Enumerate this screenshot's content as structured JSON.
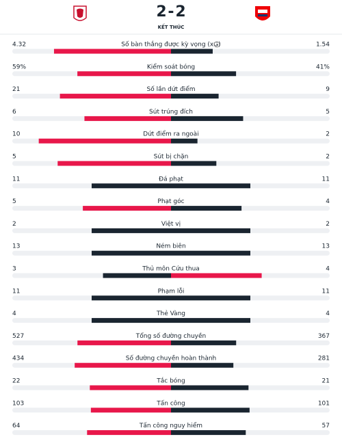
{
  "header": {
    "home_score": 2,
    "separator": "-",
    "away_score": 2,
    "status": "KẾT THÚC"
  },
  "stats": [
    {
      "label": "Số bàn thắng được kỳ vọng (xG)",
      "home": 4.32,
      "away": 1.54
    },
    {
      "label": "Kiểm soát bóng",
      "home": {
        "value": 59,
        "label": "59%"
      },
      "away": {
        "value": 41,
        "label": "41%"
      }
    },
    {
      "label": "Số lần dứt điểm",
      "home": 21,
      "away": 9
    },
    {
      "label": "Sút trúng đích",
      "home": 6,
      "away": 5
    },
    {
      "label": "Dứt điểm ra ngoài",
      "home": 10,
      "away": 2
    },
    {
      "label": "Sút bị chặn",
      "home": 5,
      "away": 2
    },
    {
      "label": "Đá phạt",
      "home": 11,
      "away": 11
    },
    {
      "label": "Phạt góc",
      "home": 5,
      "away": 4
    },
    {
      "label": "Việt vị",
      "home": 2,
      "away": 2
    },
    {
      "label": "Ném biên",
      "home": 13,
      "away": 13
    },
    {
      "label": "Thủ môn Cứu thua",
      "home": 3,
      "away": 4
    },
    {
      "label": "Phạm lỗi",
      "home": 11,
      "away": 11
    },
    {
      "label": "Thẻ Vàng",
      "home": 4,
      "away": 4
    },
    {
      "label": "Tổng số đường chuyền",
      "home": 527,
      "away": 367
    },
    {
      "label": "Số đường chuyền hoàn thành",
      "home": 434,
      "away": 281
    },
    {
      "label": "Tắc bóng",
      "home": 22,
      "away": 21
    },
    {
      "label": "Tấn công",
      "home": 103,
      "away": 101
    },
    {
      "label": "Tấn công nguy hiểm",
      "home": 64,
      "away": 57
    }
  ]
}
